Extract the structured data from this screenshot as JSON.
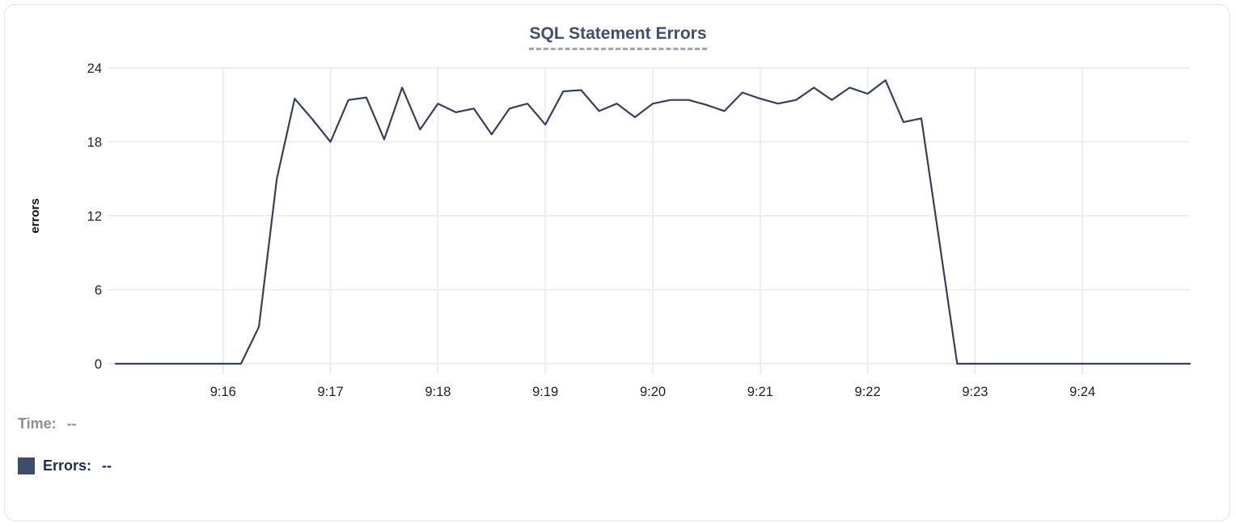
{
  "chart_data": {
    "type": "line",
    "title": "SQL Statement Errors",
    "xlabel": "",
    "ylabel": "errors",
    "ylim": [
      0,
      24
    ],
    "y_ticks": [
      0,
      6,
      12,
      18,
      24
    ],
    "x_domain": [
      "9:15:00",
      "9:25:00"
    ],
    "x_ticks": [
      {
        "time": "9:16:00",
        "label": "9:16"
      },
      {
        "time": "9:17:00",
        "label": "9:17"
      },
      {
        "time": "9:18:00",
        "label": "9:18"
      },
      {
        "time": "9:19:00",
        "label": "9:19"
      },
      {
        "time": "9:20:00",
        "label": "9:20"
      },
      {
        "time": "9:21:00",
        "label": "9:21"
      },
      {
        "time": "9:22:00",
        "label": "9:22"
      },
      {
        "time": "9:23:00",
        "label": "9:23"
      },
      {
        "time": "9:24:00",
        "label": "9:24"
      }
    ],
    "grid": "on",
    "legend_position": "none",
    "colors": {
      "line": "#33415e",
      "grid": "#e9e9e9",
      "tick_text": "#1f1f1f",
      "axis_label": "#111111",
      "title": "#3e4f74",
      "title_underline": "#9aa6c6"
    },
    "series": [
      {
        "name": "Errors",
        "color": "#33415e",
        "points": [
          [
            "9:15:00",
            0
          ],
          [
            "9:15:10",
            0
          ],
          [
            "9:15:20",
            0
          ],
          [
            "9:15:30",
            0
          ],
          [
            "9:15:40",
            0
          ],
          [
            "9:15:50",
            0
          ],
          [
            "9:16:00",
            0
          ],
          [
            "9:16:10",
            0
          ],
          [
            "9:16:20",
            3
          ],
          [
            "9:16:30",
            15
          ],
          [
            "9:16:40",
            21.5
          ],
          [
            "9:16:50",
            19.8
          ],
          [
            "9:17:00",
            18
          ],
          [
            "9:17:10",
            21.4
          ],
          [
            "9:17:20",
            21.6
          ],
          [
            "9:17:30",
            18.2
          ],
          [
            "9:17:40",
            22.4
          ],
          [
            "9:17:50",
            19
          ],
          [
            "9:18:00",
            21.1
          ],
          [
            "9:18:10",
            20.4
          ],
          [
            "9:18:20",
            20.7
          ],
          [
            "9:18:30",
            18.6
          ],
          [
            "9:18:40",
            20.7
          ],
          [
            "9:18:50",
            21.1
          ],
          [
            "9:19:00",
            19.4
          ],
          [
            "9:19:10",
            22.1
          ],
          [
            "9:19:20",
            22.2
          ],
          [
            "9:19:30",
            20.5
          ],
          [
            "9:19:40",
            21.1
          ],
          [
            "9:19:50",
            20
          ],
          [
            "9:20:00",
            21.1
          ],
          [
            "9:20:10",
            21.4
          ],
          [
            "9:20:20",
            21.4
          ],
          [
            "9:20:30",
            21
          ],
          [
            "9:20:40",
            20.5
          ],
          [
            "9:20:50",
            22
          ],
          [
            "9:21:00",
            21.5
          ],
          [
            "9:21:10",
            21.1
          ],
          [
            "9:21:20",
            21.4
          ],
          [
            "9:21:30",
            22.4
          ],
          [
            "9:21:40",
            21.4
          ],
          [
            "9:21:50",
            22.4
          ],
          [
            "9:22:00",
            21.9
          ],
          [
            "9:22:10",
            23
          ],
          [
            "9:22:20",
            19.6
          ],
          [
            "9:22:30",
            19.9
          ],
          [
            "9:22:40",
            10
          ],
          [
            "9:22:50",
            0
          ],
          [
            "9:23:00",
            0
          ],
          [
            "9:23:10",
            0
          ],
          [
            "9:23:20",
            0
          ],
          [
            "9:23:30",
            0
          ],
          [
            "9:23:40",
            0
          ],
          [
            "9:23:50",
            0
          ],
          [
            "9:24:00",
            0
          ],
          [
            "9:24:10",
            0
          ],
          [
            "9:24:20",
            0
          ],
          [
            "9:24:30",
            0
          ],
          [
            "9:24:40",
            0
          ],
          [
            "9:24:50",
            0
          ],
          [
            "9:25:00",
            0
          ]
        ]
      }
    ]
  },
  "status": {
    "time_label": "Time:",
    "time_value": "--",
    "errors_label": "Errors:",
    "errors_value": "--",
    "swatch_color": "#3d4c69"
  }
}
